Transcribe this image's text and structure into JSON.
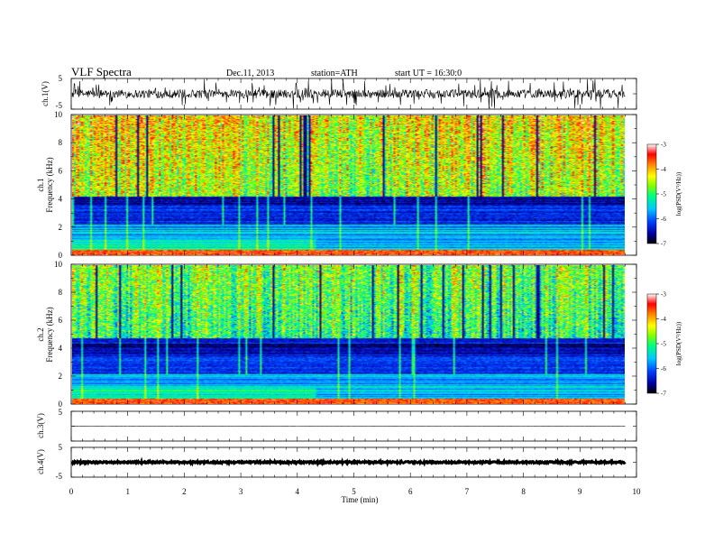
{
  "header": {
    "title": "VLF Spectra",
    "date": "Dec.11, 2013",
    "station": "station=ATH",
    "start": "start UT = 16:30:0"
  },
  "chart_data": [
    {
      "type": "line",
      "panel": "ch1-waveform",
      "ylabel": "ch.1(V)",
      "ylim": [
        -5,
        5
      ],
      "yticks": [
        "5",
        "-5"
      ],
      "description_values": {
        "baseline": 0,
        "noise_amplitude": 1.5
      }
    },
    {
      "type": "heatmap",
      "panel": "ch1-spectrogram",
      "ylabel": [
        "ch.1",
        "Frequency (kHz)"
      ],
      "ylim": [
        0,
        10
      ],
      "yticks": [
        "0",
        "2",
        "4",
        "6",
        "8",
        "10"
      ],
      "colorbar": {
        "label": "log(PSD(V²/Hz))",
        "range": [
          -7,
          -3
        ],
        "ticks": [
          "-3",
          "-4",
          "-5",
          "-6",
          "-7"
        ]
      }
    },
    {
      "type": "heatmap",
      "panel": "ch2-spectrogram",
      "ylabel": [
        "ch.2",
        "Frequency (kHz)"
      ],
      "ylim": [
        0,
        10
      ],
      "yticks": [
        "0",
        "2",
        "4",
        "6",
        "8",
        "10"
      ],
      "colorbar": {
        "label": "log(PSD(V²/Hz))",
        "range": [
          -7,
          -3
        ],
        "ticks": [
          "-3",
          "-4",
          "-5",
          "-6",
          "-7"
        ]
      }
    },
    {
      "type": "line",
      "panel": "ch3-waveform",
      "ylabel": "ch.3(V)",
      "ylim": [
        -5,
        5
      ],
      "yticks": [
        "5"
      ],
      "description_values": {
        "baseline": 0,
        "noise_amplitude": 0
      }
    },
    {
      "type": "line",
      "panel": "ch4-waveform",
      "ylabel": "ch.4(V)",
      "ylim": [
        -5,
        5
      ],
      "yticks": [
        "5",
        "-5"
      ],
      "description_values": {
        "baseline": 0,
        "noise_amplitude": 0.3
      }
    }
  ],
  "xaxis": {
    "label": "Time (min)",
    "range": [
      0,
      10
    ],
    "ticks": [
      "0",
      "1",
      "2",
      "3",
      "4",
      "5",
      "6",
      "7",
      "8",
      "9",
      "10"
    ],
    "data_end": 9.8
  },
  "colors": {
    "colormap": [
      "#000000",
      "#0000a0",
      "#0040ff",
      "#00c8ff",
      "#00ff80",
      "#80ff00",
      "#ffff00",
      "#ff8000",
      "#ff0000",
      "#ffffff"
    ]
  }
}
